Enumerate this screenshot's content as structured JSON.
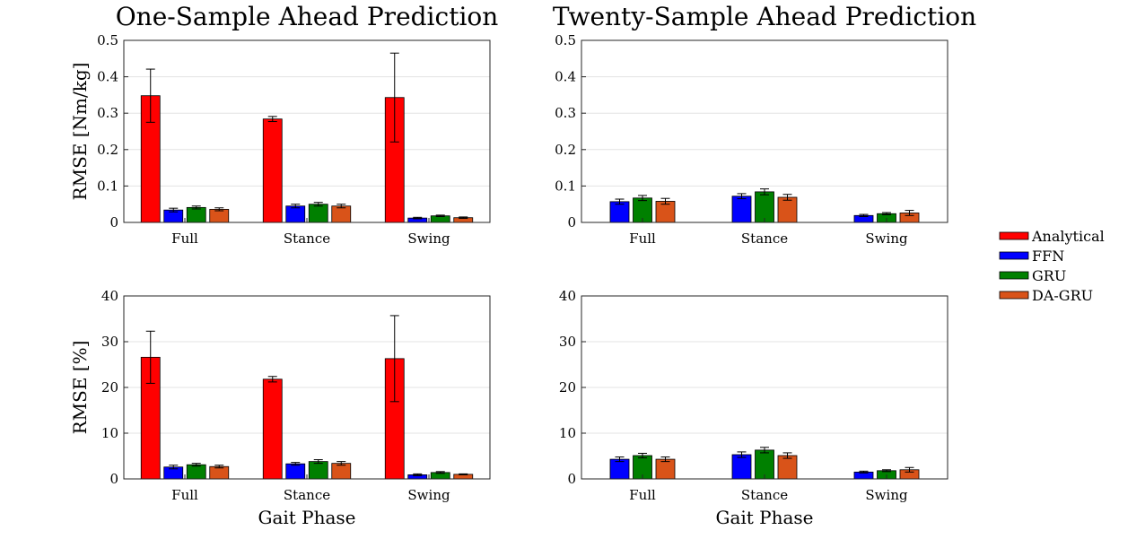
{
  "colors": {
    "Analytical": "#ff0000",
    "FFN": "#0000ff",
    "GRU": "#008000",
    "DA-GRU": "#d95319"
  },
  "legend": {
    "items": [
      "Analytical",
      "FFN",
      "GRU",
      "DA-GRU"
    ],
    "placement": "right"
  },
  "chart_data": [
    {
      "type": "bar",
      "title": "One-Sample Ahead Prediction",
      "xlabel": "",
      "ylabel": "RMSE [Nm/kg]",
      "categories": [
        "Full",
        "Stance",
        "Swing"
      ],
      "ylim": [
        0,
        0.5
      ],
      "yticks": [
        "0",
        "0.1",
        "0.2",
        "0.3",
        "0.4",
        "0.5"
      ],
      "ytick_values": [
        0,
        0.1,
        0.2,
        0.3,
        0.4,
        0.5
      ],
      "grid": true,
      "series": [
        {
          "name": "Analytical",
          "values": [
            0.348,
            0.284,
            0.343
          ],
          "errors": [
            0.073,
            0.007,
            0.122
          ]
        },
        {
          "name": "FFN",
          "values": [
            0.034,
            0.045,
            0.012
          ],
          "errors": [
            0.005,
            0.005,
            0.002
          ]
        },
        {
          "name": "GRU",
          "values": [
            0.041,
            0.05,
            0.018
          ],
          "errors": [
            0.004,
            0.005,
            0.002
          ]
        },
        {
          "name": "DA-GRU",
          "values": [
            0.036,
            0.045,
            0.013
          ],
          "errors": [
            0.004,
            0.005,
            0.002
          ]
        }
      ]
    },
    {
      "type": "bar",
      "title": "Twenty-Sample Ahead Prediction",
      "xlabel": "",
      "ylabel": "",
      "categories": [
        "Full",
        "Stance",
        "Swing"
      ],
      "ylim": [
        0,
        0.5
      ],
      "yticks": [
        "0",
        "0.1",
        "0.2",
        "0.3",
        "0.4",
        "0.5"
      ],
      "ytick_values": [
        0,
        0.1,
        0.2,
        0.3,
        0.4,
        0.5
      ],
      "grid": true,
      "series": [
        {
          "name": "FFN",
          "values": [
            0.057,
            0.072,
            0.019
          ],
          "errors": [
            0.007,
            0.007,
            0.003
          ]
        },
        {
          "name": "GRU",
          "values": [
            0.067,
            0.084,
            0.024
          ],
          "errors": [
            0.007,
            0.008,
            0.003
          ]
        },
        {
          "name": "DA-GRU",
          "values": [
            0.058,
            0.069,
            0.026
          ],
          "errors": [
            0.008,
            0.008,
            0.007
          ]
        }
      ]
    },
    {
      "type": "bar",
      "title": "",
      "xlabel": "Gait Phase",
      "ylabel": "RMSE [%]",
      "categories": [
        "Full",
        "Stance",
        "Swing"
      ],
      "ylim": [
        0,
        40
      ],
      "yticks": [
        "0",
        "10",
        "20",
        "30",
        "40"
      ],
      "ytick_values": [
        0,
        10,
        20,
        30,
        40
      ],
      "grid": true,
      "series": [
        {
          "name": "Analytical",
          "values": [
            26.6,
            21.8,
            26.3
          ],
          "errors": [
            5.7,
            0.6,
            9.4
          ]
        },
        {
          "name": "FFN",
          "values": [
            2.6,
            3.3,
            0.9
          ],
          "errors": [
            0.4,
            0.3,
            0.2
          ]
        },
        {
          "name": "GRU",
          "values": [
            3.1,
            3.8,
            1.4
          ],
          "errors": [
            0.3,
            0.4,
            0.2
          ]
        },
        {
          "name": "DA-GRU",
          "values": [
            2.7,
            3.4,
            1.0
          ],
          "errors": [
            0.3,
            0.4,
            0.1
          ]
        }
      ]
    },
    {
      "type": "bar",
      "title": "",
      "xlabel": "Gait Phase",
      "ylabel": "",
      "categories": [
        "Full",
        "Stance",
        "Swing"
      ],
      "ylim": [
        0,
        40
      ],
      "yticks": [
        "0",
        "10",
        "20",
        "30",
        "40"
      ],
      "ytick_values": [
        0,
        10,
        20,
        30,
        40
      ],
      "grid": true,
      "series": [
        {
          "name": "FFN",
          "values": [
            4.3,
            5.3,
            1.5
          ],
          "errors": [
            0.5,
            0.6,
            0.2
          ]
        },
        {
          "name": "GRU",
          "values": [
            5.1,
            6.3,
            1.8
          ],
          "errors": [
            0.5,
            0.6,
            0.2
          ]
        },
        {
          "name": "DA-GRU",
          "values": [
            4.3,
            5.1,
            2.0
          ],
          "errors": [
            0.5,
            0.6,
            0.5
          ]
        }
      ]
    }
  ]
}
